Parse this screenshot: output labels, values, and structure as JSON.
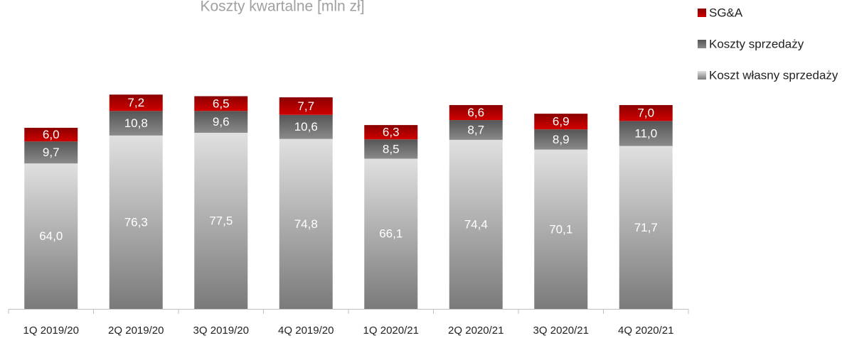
{
  "chart_data": {
    "type": "stacked_bar",
    "title": "Koszty kwartalne [mln zł]",
    "categories": [
      "1Q 2019/20",
      "2Q 2019/20",
      "3Q 2019/20",
      "4Q 2019/20",
      "1Q 2020/21",
      "2Q 2020/21",
      "3Q 2020/21",
      "4Q 2020/21"
    ],
    "series": [
      {
        "name": "Koszt własny sprzedaży",
        "color": "#bfbfbf",
        "values": [
          64.0,
          76.3,
          77.5,
          74.8,
          66.1,
          74.4,
          70.1,
          71.7
        ],
        "value_labels": [
          "64,0",
          "76,3",
          "77,5",
          "74,8",
          "66,1",
          "74,4",
          "70,1",
          "71,7"
        ]
      },
      {
        "name": "Koszty sprzedaży",
        "color": "#6d6d6d",
        "values": [
          9.7,
          10.8,
          9.6,
          10.6,
          8.5,
          8.7,
          8.9,
          11.0
        ],
        "value_labels": [
          "9,7",
          "10,8",
          "9,6",
          "10,6",
          "8,5",
          "8,7",
          "8,9",
          "11,0"
        ]
      },
      {
        "name": "SG&A",
        "color": "#c00000",
        "values": [
          6.0,
          7.2,
          6.5,
          7.7,
          6.3,
          6.6,
          6.9,
          7.0
        ],
        "value_labels": [
          "6,0",
          "7,2",
          "6,5",
          "7,7",
          "6,3",
          "6,6",
          "6,9",
          "7,0"
        ]
      }
    ],
    "ylim": [
      0,
      100
    ],
    "legend": "top-right"
  }
}
